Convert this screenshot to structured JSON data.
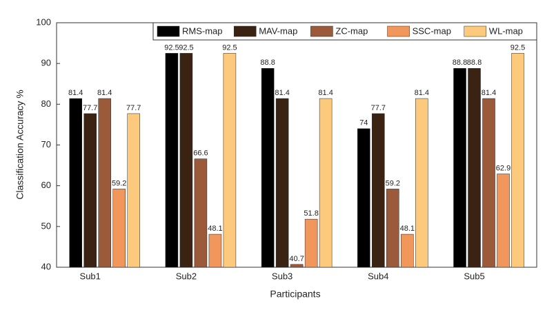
{
  "chart_data": {
    "type": "bar",
    "x_label": "Participants",
    "y_label": "Classification Accuracy %",
    "categories": [
      "Sub1",
      "Sub2",
      "Sub3",
      "Sub4",
      "Sub5"
    ],
    "series": [
      {
        "name": "RMS-map",
        "color": "#000000",
        "values": [
          81.4,
          92.5,
          88.8,
          74,
          88.8
        ]
      },
      {
        "name": "MAV-map",
        "color": "#3b2314",
        "values": [
          77.7,
          92.5,
          81.4,
          77.7,
          88.8
        ]
      },
      {
        "name": "ZC-map",
        "color": "#9b5b3b",
        "values": [
          81.4,
          66.6,
          40.7,
          59.2,
          81.4
        ]
      },
      {
        "name": "SSC-map",
        "color": "#f1975c",
        "values": [
          59.2,
          48.1,
          51.8,
          48.1,
          62.9
        ]
      },
      {
        "name": "WL-map",
        "color": "#fdc97c",
        "values": [
          77.7,
          92.5,
          81.4,
          81.4,
          92.5
        ]
      }
    ],
    "ylim": [
      40,
      100
    ],
    "yticks": [
      40,
      50,
      60,
      70,
      80,
      90,
      100
    ],
    "legend": "top"
  }
}
